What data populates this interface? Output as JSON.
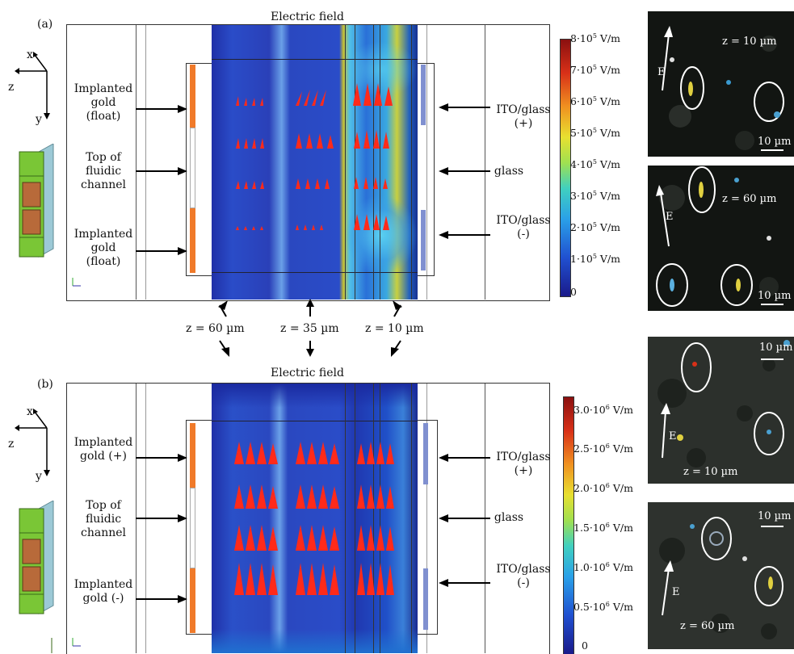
{
  "panel_a": {
    "tag": "(a)",
    "title": "Electric field",
    "left_labels": [
      {
        "id": "gold1",
        "lines": [
          "Implanted",
          "gold",
          "(float)"
        ]
      },
      {
        "id": "top",
        "lines": [
          "Top of",
          "fluidic",
          "channel"
        ]
      },
      {
        "id": "gold2",
        "lines": [
          "Implanted",
          "gold",
          "(float)"
        ]
      }
    ],
    "right_labels": [
      {
        "id": "ito1",
        "lines": [
          "ITO/glass",
          "(+)"
        ]
      },
      {
        "id": "glass",
        "lines": [
          "glass"
        ]
      },
      {
        "id": "ito2",
        "lines": [
          "ITO/glass",
          "(-)"
        ]
      }
    ],
    "colorbar": {
      "ticks": [
        {
          "pre": "8·10",
          "exp": "5",
          "unit": " V/m"
        },
        {
          "pre": "7·10",
          "exp": "5",
          "unit": " V/m"
        },
        {
          "pre": "6·10",
          "exp": "5",
          "unit": " V/m"
        },
        {
          "pre": "5·10",
          "exp": "5",
          "unit": " V/m"
        },
        {
          "pre": "4·10",
          "exp": "5",
          "unit": " V/m"
        },
        {
          "pre": "3·10",
          "exp": "5",
          "unit": " V/m"
        },
        {
          "pre": "2·10",
          "exp": "5",
          "unit": " V/m"
        },
        {
          "pre": "1·10",
          "exp": "5",
          "unit": " V/m"
        },
        {
          "pre": "0",
          "exp": "",
          "unit": ""
        }
      ]
    },
    "micrographs": [
      {
        "z_label": "z = 10 µm",
        "scale": "10 µm",
        "e": "E"
      },
      {
        "z_label": "z = 60 µm",
        "scale": "10 µm",
        "e": "E"
      }
    ]
  },
  "z_labels": [
    "z = 60 µm",
    "z = 35 µm",
    "z = 10 µm"
  ],
  "panel_b": {
    "tag": "(b)",
    "title": "Electric field",
    "left_labels": [
      {
        "id": "gold1",
        "lines": [
          "Implanted",
          "gold (+)"
        ]
      },
      {
        "id": "top",
        "lines": [
          "Top of",
          "fluidic",
          "channel"
        ]
      },
      {
        "id": "gold2",
        "lines": [
          "Implanted",
          "gold (-)"
        ]
      }
    ],
    "right_labels": [
      {
        "id": "ito1",
        "lines": [
          "ITO/glass",
          "(+)"
        ]
      },
      {
        "id": "glass",
        "lines": [
          "glass"
        ]
      },
      {
        "id": "ito2",
        "lines": [
          "ITO/glass",
          "(-)"
        ]
      }
    ],
    "colorbar": {
      "ticks": [
        {
          "pre": "3.0·10",
          "exp": "6",
          "unit": " V/m"
        },
        {
          "pre": "2.5·10",
          "exp": "6",
          "unit": " V/m"
        },
        {
          "pre": "2.0·10",
          "exp": "6",
          "unit": " V/m"
        },
        {
          "pre": "1.5·10",
          "exp": "6",
          "unit": " V/m"
        },
        {
          "pre": "1.0·10",
          "exp": "6",
          "unit": " V/m"
        },
        {
          "pre": "0.5·10",
          "exp": "6",
          "unit": " V/m"
        },
        {
          "pre": "0",
          "exp": "",
          "unit": ""
        }
      ]
    },
    "micrographs": [
      {
        "z_label": "z = 10 µm",
        "scale": "10 µm",
        "e": "E"
      },
      {
        "z_label": "z = 60 µm",
        "scale": "10 µm",
        "e": "E"
      }
    ]
  },
  "axes": {
    "x": "x",
    "y": "y",
    "z": "z"
  },
  "colors": {
    "field_dark": "#1a2a9a",
    "field_mid": "#2f5fd6",
    "hot": "#e0d030",
    "arrow_red": "#ff2a1a",
    "gold_orange": "#f07a2a",
    "ito_blue": "#8090d0"
  }
}
